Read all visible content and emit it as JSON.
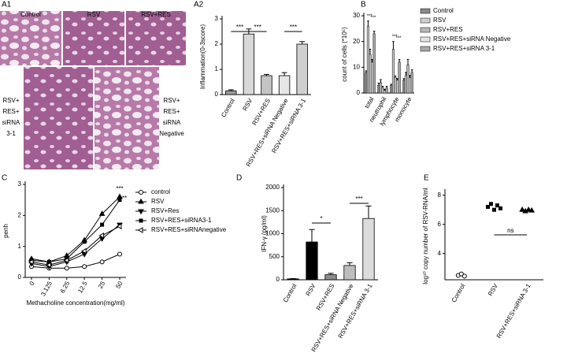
{
  "histology": {
    "panel": "A1",
    "top_labels": [
      "Control",
      "RSV",
      "RSV+RES"
    ],
    "left_label": [
      "RSV+",
      "RES+",
      "siRNA",
      "3-1"
    ],
    "right_label": [
      "RSV+",
      "RES+",
      "siRNA",
      "Negative"
    ]
  },
  "chart_data": [
    {
      "type": "bar",
      "panel": "A2",
      "ylabel": "Inflammation(0-3score)",
      "categories": [
        "Control",
        "RSV",
        "RSV+RES",
        "RSV+RES+siRNA Negative",
        "RSV+RES+siRNA 3-1"
      ],
      "values": [
        0.15,
        2.4,
        0.75,
        0.75,
        2.0
      ],
      "errors": [
        0.04,
        0.2,
        0.05,
        0.12,
        0.1
      ],
      "colors": [
        "#9a9a9a",
        "#d8d8d8",
        "#c4c4c4",
        "#e6e6e6",
        "#cfcfcf"
      ],
      "ylim": [
        0,
        3
      ],
      "yticks": [
        0,
        1,
        2,
        3
      ],
      "annotations": [
        "***",
        "***",
        "***"
      ]
    },
    {
      "type": "groupedbar",
      "panel": "B",
      "ylabel": "count of cells (*10⁵)",
      "categories": [
        "total",
        "neutrophil",
        "lymphocyte",
        "monocyte"
      ],
      "series": [
        {
          "name": "Control",
          "color": "#8a8a8a",
          "values": [
            8,
            3,
            3,
            5
          ],
          "errors": [
            0.6,
            0.8,
            0.4,
            0.6
          ]
        },
        {
          "name": "RSV",
          "color": "#d0d0d0",
          "values": [
            26,
            4,
            17,
            7
          ],
          "errors": [
            2,
            1.2,
            3,
            1
          ]
        },
        {
          "name": "RSV+RES",
          "color": "#b8b8b8",
          "values": [
            15,
            2,
            6,
            11
          ],
          "errors": [
            2,
            0.6,
            0.6,
            2
          ]
        },
        {
          "name": "RSV+RES+siRNA Negative",
          "color": "#e4e4e4",
          "values": [
            12,
            1,
            5,
            6
          ],
          "errors": [
            1,
            0.4,
            0.6,
            0.8
          ]
        },
        {
          "name": "RSV+RES+siRNA 3-1",
          "color": "#a8a8a8",
          "values": [
            23,
            2,
            12,
            8
          ],
          "errors": [
            1,
            0.6,
            1,
            1
          ]
        }
      ],
      "ylim": [
        0,
        30
      ],
      "yticks": [
        0,
        10,
        20,
        30
      ],
      "annotations": [
        "***",
        "***",
        "***",
        "***"
      ]
    },
    {
      "type": "line",
      "panel": "C",
      "ylabel": "penh",
      "xlabel": "Methacholine concentration(mg/ml)",
      "categories": [
        "0",
        "3.125",
        "6.25",
        "12.5",
        "25",
        "50"
      ],
      "series": [
        {
          "name": "control",
          "color": "#000000",
          "values": [
            0.35,
            0.3,
            0.3,
            0.35,
            0.5,
            0.75
          ]
        },
        {
          "name": "RSV",
          "color": "#000000",
          "values": [
            0.6,
            0.5,
            0.7,
            1.2,
            2.05,
            2.6
          ]
        },
        {
          "name": "RSV+Res",
          "color": "#000000",
          "values": [
            0.45,
            0.35,
            0.5,
            0.75,
            1.25,
            1.7
          ]
        },
        {
          "name": "RSV+RES+siRNA3-1",
          "color": "#000000",
          "values": [
            0.55,
            0.5,
            0.6,
            1.15,
            1.7,
            2.5
          ]
        },
        {
          "name": "RSV+RES+siRNAnegative",
          "color": "#000000",
          "values": [
            0.5,
            0.4,
            0.55,
            0.85,
            1.35,
            1.65
          ]
        }
      ],
      "ylim": [
        0,
        3
      ],
      "yticks": [
        0,
        1,
        2,
        3
      ],
      "annotations": [
        "***",
        "**"
      ]
    },
    {
      "type": "bar",
      "panel": "D",
      "ylabel": "IFN-γ (pg/ml)",
      "categories": [
        "Control",
        "RSV",
        "RSV+RES",
        "RSV+RES+siRNA Negative",
        "RSV+RES+siRNA 3-1"
      ],
      "values": [
        20,
        820,
        110,
        310,
        1330
      ],
      "errors": [
        5,
        270,
        30,
        60,
        270
      ],
      "colors": [
        "#000000",
        "#000000",
        "#8c8c8c",
        "#bdbdbd",
        "#dcdcdc"
      ],
      "ylim": [
        0,
        2000
      ],
      "yticks": [
        0,
        500,
        1000,
        1500,
        2000
      ],
      "annotations": [
        "*",
        "***"
      ]
    },
    {
      "type": "dot",
      "panel": "E",
      "ylabel": "log¹⁰ copy number of RSV-RNA/ml",
      "categories": [
        "Control",
        "RSV",
        "RSV+RES+siRNA 3-1"
      ],
      "groups": [
        [
          2.5,
          2.6,
          2.45
        ],
        [
          7.2,
          7.4,
          7.0,
          7.3,
          7.1
        ],
        [
          7.0,
          6.9,
          7.0,
          6.95
        ]
      ],
      "ylim": [
        2.2,
        8.2
      ],
      "yticks": [
        4,
        6,
        8
      ],
      "annotations": [
        "ns"
      ]
    }
  ]
}
